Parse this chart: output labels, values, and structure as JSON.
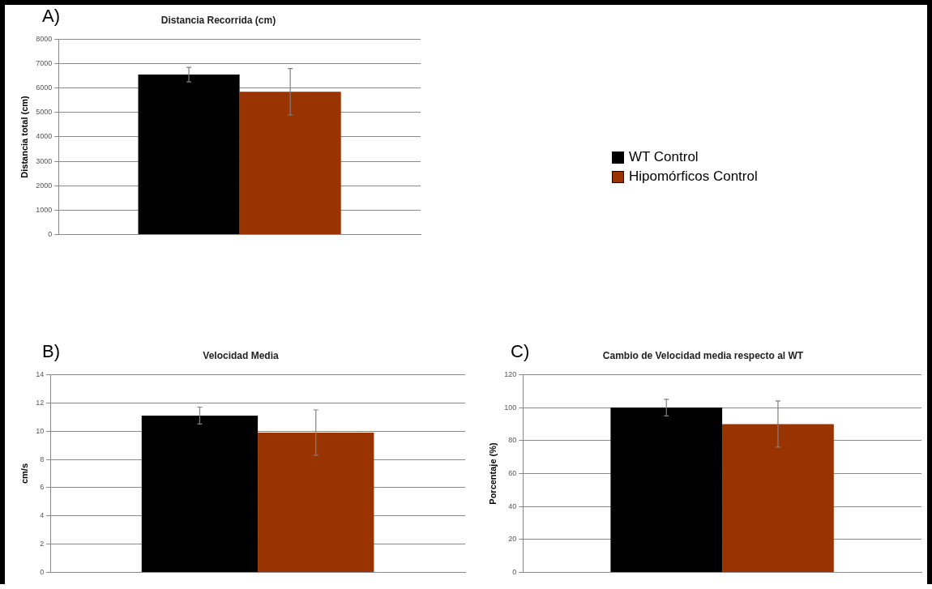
{
  "chart_data": [
    {
      "type": "bar",
      "title": "Distancia Recorrida (cm)",
      "ylabel": "Distancia total (cm)",
      "annotations": [
        "A)"
      ],
      "categories": [
        null
      ],
      "series": [
        {
          "name": "WT Control",
          "color": "#000000",
          "values": [
            6550
          ],
          "errors": [
            300
          ]
        },
        {
          "name": "Hipomórficos Control",
          "color": "#993300",
          "values": [
            5850
          ],
          "errors": [
            950
          ]
        }
      ],
      "ylim": [
        0,
        8000
      ],
      "yticks": [
        0,
        1000,
        2000,
        3000,
        4000,
        5000,
        6000,
        7000,
        8000
      ],
      "grid": "y",
      "legend": "right"
    },
    {
      "type": "bar",
      "title": "Velocidad Media",
      "ylabel": "cm/s",
      "annotations": [
        "B)"
      ],
      "categories": [
        null
      ],
      "series": [
        {
          "color": "#000000",
          "values": [
            11.1
          ],
          "errors": [
            0.6
          ]
        },
        {
          "color": "#993300",
          "values": [
            9.9
          ],
          "errors": [
            1.6
          ]
        }
      ],
      "ylim": [
        0,
        14
      ],
      "yticks": [
        0,
        2,
        4,
        6,
        8,
        10,
        12,
        14
      ],
      "grid": "y"
    },
    {
      "type": "bar",
      "title": "Cambio de Velocidad media respecto al WT",
      "ylabel": "Porcentaje (%)",
      "annotations": [
        "C)"
      ],
      "categories": [
        null
      ],
      "series": [
        {
          "color": "#000000",
          "values": [
            100
          ],
          "errors": [
            5
          ]
        },
        {
          "color": "#993300",
          "values": [
            90
          ],
          "errors": [
            14
          ]
        }
      ],
      "ylim": [
        0,
        120
      ],
      "yticks": [
        0,
        20,
        40,
        60,
        80,
        100,
        120
      ],
      "grid": "y"
    }
  ]
}
